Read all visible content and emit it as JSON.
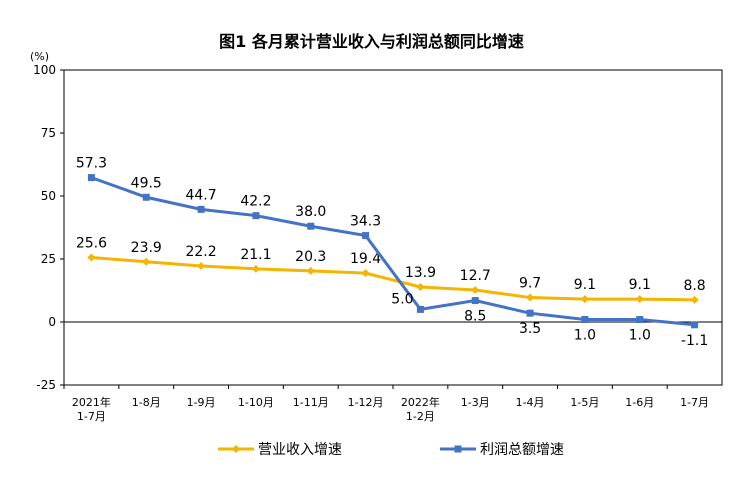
{
  "chart_data": {
    "type": "line",
    "title": "图1  各月累计营业收入与利润总额同比增速",
    "yunit": "(%)",
    "ylim": [
      -25,
      100
    ],
    "yticks": [
      "100",
      "75",
      "50",
      "25",
      "0",
      "-25"
    ],
    "categories": [
      [
        "2021年",
        "1-7月"
      ],
      [
        "1-8月"
      ],
      [
        "1-9月"
      ],
      [
        "1-10月"
      ],
      [
        "1-11月"
      ],
      [
        "1-12月"
      ],
      [
        "2022年",
        "1-2月"
      ],
      [
        "1-3月"
      ],
      [
        "1-4月"
      ],
      [
        "1-5月"
      ],
      [
        "1-6月"
      ],
      [
        "1-7月"
      ]
    ],
    "series": [
      {
        "name": "营业收入增速",
        "color": "#F4B400",
        "values": [
          25.6,
          23.9,
          22.2,
          21.1,
          20.3,
          19.4,
          13.9,
          12.7,
          9.7,
          9.1,
          9.1,
          8.8
        ],
        "labels": [
          "25.6",
          "23.9",
          "22.2",
          "21.1",
          "20.3",
          "19.4",
          "13.9",
          "12.7",
          "9.7",
          "9.1",
          "9.1",
          "8.8"
        ],
        "label_pos": "above"
      },
      {
        "name": "利润总额增速",
        "color": "#4472C4",
        "values": [
          57.3,
          49.5,
          44.7,
          42.2,
          38.0,
          34.3,
          5.0,
          8.5,
          3.5,
          1.0,
          1.0,
          -1.1
        ],
        "labels": [
          "57.3",
          "49.5",
          "44.7",
          "42.2",
          "38.0",
          "34.3",
          "5.0",
          "8.5",
          "3.5",
          "1.0",
          "1.0",
          "-1.1"
        ],
        "label_pos": [
          "above",
          "above",
          "above",
          "above",
          "above",
          "above",
          "left",
          "below",
          "below",
          "below",
          "below",
          "below"
        ]
      }
    ],
    "legend": "bottom",
    "grid": false
  }
}
